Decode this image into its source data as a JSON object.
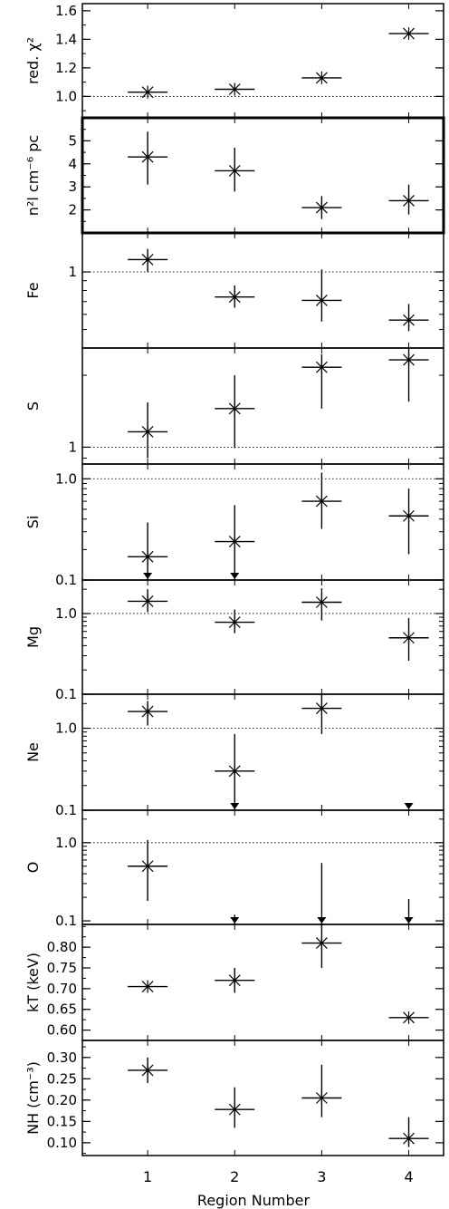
{
  "chart_data": {
    "type": "scatter",
    "xlabel": "Region Number",
    "x_ticks": [
      "1",
      "2",
      "3",
      "4"
    ],
    "xlim": [
      0.25,
      4.4
    ],
    "marker": "asterisk-with-error-bars",
    "panels": [
      {
        "id": "redchi",
        "ylabel": "red. χ²",
        "scale": "linear",
        "ylim": [
          0.85,
          1.65
        ],
        "ticks": [
          1.0,
          1.2,
          1.4,
          1.6
        ],
        "tick_labels": [
          "1.0",
          "1.2",
          "1.4",
          "1.6"
        ],
        "reference_line": 1.0,
        "points": [
          {
            "x": 1,
            "y": 1.03,
            "ylo": 1.03,
            "yhi": 1.03
          },
          {
            "x": 2,
            "y": 1.05,
            "ylo": 1.05,
            "yhi": 1.05
          },
          {
            "x": 3,
            "y": 1.13,
            "ylo": 1.13,
            "yhi": 1.13
          },
          {
            "x": 4,
            "y": 1.44,
            "ylo": 1.44,
            "yhi": 1.44
          }
        ]
      },
      {
        "id": "norm",
        "ylabel": "n²l cm⁻⁶ pc",
        "scale": "linear",
        "ylim": [
          1.0,
          6.0
        ],
        "ticks": [
          2,
          3,
          4,
          5
        ],
        "tick_labels": [
          "2",
          "3",
          "4",
          "5"
        ],
        "points": [
          {
            "x": 1,
            "y": 4.3,
            "ylo": 3.1,
            "yhi": 5.4
          },
          {
            "x": 2,
            "y": 3.7,
            "ylo": 2.8,
            "yhi": 4.7
          },
          {
            "x": 3,
            "y": 2.1,
            "ylo": 1.6,
            "yhi": 2.6
          },
          {
            "x": 4,
            "y": 2.4,
            "ylo": 1.8,
            "yhi": 3.1
          }
        ]
      },
      {
        "id": "Fe",
        "ylabel": "Fe",
        "scale": "log",
        "ylim": [
          0.4,
          1.6
        ],
        "ticks": [
          1
        ],
        "tick_labels": [
          "1"
        ],
        "reference_line": 1.0,
        "points": [
          {
            "x": 1,
            "y": 1.16,
            "ylo": 1.0,
            "yhi": 1.32
          },
          {
            "x": 2,
            "y": 0.74,
            "ylo": 0.65,
            "yhi": 0.85
          },
          {
            "x": 3,
            "y": 0.71,
            "ylo": 0.55,
            "yhi": 1.03
          },
          {
            "x": 4,
            "y": 0.56,
            "ylo": 0.49,
            "yhi": 0.68
          }
        ]
      },
      {
        "id": "S",
        "ylabel": "S",
        "scale": "log",
        "ylim": [
          0.85,
          2.6
        ],
        "ticks": [
          1
        ],
        "tick_labels": [
          "1"
        ],
        "reference_line": 1.0,
        "points": [
          {
            "x": 1,
            "y": 1.16,
            "ylo": 0.9,
            "yhi": 1.54
          },
          {
            "x": 2,
            "y": 1.45,
            "ylo": 0.99,
            "yhi": 2.0
          },
          {
            "x": 3,
            "y": 2.16,
            "ylo": 1.45,
            "yhi": 2.45
          },
          {
            "x": 4,
            "y": 2.32,
            "ylo": 1.55,
            "yhi": 2.6
          }
        ]
      },
      {
        "id": "Si",
        "ylabel": "Si",
        "scale": "log",
        "ylim": [
          0.1,
          1.4
        ],
        "ticks": [
          0.1,
          1.0
        ],
        "tick_labels": [
          "0.1",
          "1.0"
        ],
        "reference_line": 1.0,
        "points": [
          {
            "x": 1,
            "y": 0.17,
            "ylo": 0.1,
            "yhi": 0.37,
            "upper_limit_arrow": true
          },
          {
            "x": 2,
            "y": 0.24,
            "ylo": 0.1,
            "yhi": 0.55,
            "upper_limit_arrow": true
          },
          {
            "x": 3,
            "y": 0.6,
            "ylo": 0.32,
            "yhi": 1.15
          },
          {
            "x": 4,
            "y": 0.43,
            "ylo": 0.18,
            "yhi": 0.8
          }
        ]
      },
      {
        "id": "Mg",
        "ylabel": "Mg",
        "scale": "log",
        "ylim": [
          0.1,
          2.6
        ],
        "ticks": [
          0.1,
          1.0
        ],
        "tick_labels": [
          "0.1",
          "1.0"
        ],
        "reference_line": 1.0,
        "points": [
          {
            "x": 1,
            "y": 1.42,
            "ylo": 1.04,
            "yhi": 2.0
          },
          {
            "x": 2,
            "y": 0.78,
            "ylo": 0.57,
            "yhi": 1.12
          },
          {
            "x": 3,
            "y": 1.38,
            "ylo": 0.82,
            "yhi": 2.05
          },
          {
            "x": 4,
            "y": 0.5,
            "ylo": 0.26,
            "yhi": 0.88
          }
        ]
      },
      {
        "id": "Ne",
        "ylabel": "Ne",
        "scale": "log",
        "ylim": [
          0.1,
          2.6
        ],
        "ticks": [
          0.1,
          1.0
        ],
        "tick_labels": [
          "0.1",
          "1.0"
        ],
        "reference_line": 1.0,
        "points": [
          {
            "x": 1,
            "y": 1.6,
            "ylo": 1.08,
            "yhi": 2.15
          },
          {
            "x": 2,
            "y": 0.3,
            "ylo": 0.1,
            "yhi": 0.85,
            "upper_limit_arrow": true
          },
          {
            "x": 3,
            "y": 1.75,
            "ylo": 0.85,
            "yhi": 2.55
          },
          {
            "x": 4,
            "y": 0.1,
            "ylo": 0.1,
            "yhi": 0.1,
            "upper_limit_arrow": true,
            "no_marker": true
          }
        ]
      },
      {
        "id": "O",
        "ylabel": "O",
        "scale": "log",
        "ylim": [
          0.09,
          2.6
        ],
        "ticks": [
          0.1,
          1.0
        ],
        "tick_labels": [
          "0.1",
          "1.0"
        ],
        "reference_line": 1.0,
        "points": [
          {
            "x": 1,
            "y": 0.5,
            "ylo": 0.18,
            "yhi": 1.08
          },
          {
            "x": 2,
            "y": 0.12,
            "ylo": 0.09,
            "yhi": 0.12,
            "upper_limit_arrow": true,
            "no_marker": true
          },
          {
            "x": 3,
            "y": 0.55,
            "ylo": 0.09,
            "yhi": 0.55,
            "upper_limit_arrow": true,
            "no_marker": true
          },
          {
            "x": 4,
            "y": 0.19,
            "ylo": 0.09,
            "yhi": 0.19,
            "upper_limit_arrow": true,
            "no_marker": true
          }
        ]
      },
      {
        "id": "kT",
        "ylabel": "kT (keV)",
        "scale": "linear",
        "ylim": [
          0.575,
          0.855
        ],
        "ticks": [
          0.6,
          0.65,
          0.7,
          0.75,
          0.8
        ],
        "tick_labels": [
          "0.60",
          "0.65",
          "0.70",
          "0.75",
          "0.80"
        ],
        "points": [
          {
            "x": 1,
            "y": 0.705,
            "ylo": 0.705,
            "yhi": 0.705
          },
          {
            "x": 2,
            "y": 0.72,
            "ylo": 0.69,
            "yhi": 0.75
          },
          {
            "x": 3,
            "y": 0.81,
            "ylo": 0.75,
            "yhi": 0.86
          },
          {
            "x": 4,
            "y": 0.63,
            "ylo": 0.63,
            "yhi": 0.63
          }
        ]
      },
      {
        "id": "NH",
        "ylabel": "NH (cm⁻³)",
        "scale": "linear",
        "ylim": [
          0.07,
          0.34
        ],
        "ticks": [
          0.1,
          0.15,
          0.2,
          0.25,
          0.3
        ],
        "tick_labels": [
          "0.10",
          "0.15",
          "0.20",
          "0.25",
          "0.30"
        ],
        "points": [
          {
            "x": 1,
            "y": 0.27,
            "ylo": 0.24,
            "yhi": 0.3
          },
          {
            "x": 2,
            "y": 0.178,
            "ylo": 0.135,
            "yhi": 0.23
          },
          {
            "x": 3,
            "y": 0.205,
            "ylo": 0.16,
            "yhi": 0.283
          },
          {
            "x": 4,
            "y": 0.11,
            "ylo": 0.09,
            "yhi": 0.16
          }
        ]
      }
    ]
  }
}
